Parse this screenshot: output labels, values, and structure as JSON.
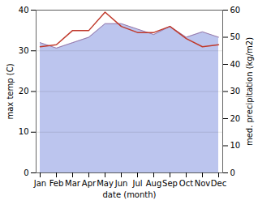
{
  "chart_data": {
    "type": "line",
    "categories": [
      "Jan",
      "Feb",
      "Mar",
      "Apr",
      "May",
      "Jun",
      "Jul",
      "Aug",
      "Sep",
      "Oct",
      "Nov",
      "Dec"
    ],
    "xlabel": "date (month)",
    "ylabel": "max temp (C)",
    "y2label": "med. precipitation (kg/m2)",
    "ylim": [
      0,
      40
    ],
    "yticks": [
      0,
      10,
      20,
      30,
      40
    ],
    "y2lim": [
      0,
      60
    ],
    "y2ticks": [
      0,
      10,
      20,
      30,
      40,
      50,
      60
    ],
    "grid": true,
    "series": [
      {
        "type": "area",
        "axis": "y2",
        "colors": [
          "#bcc5ee",
          "#9878a8"
        ],
        "values": [
          48.0,
          46.0,
          48.0,
          50.0,
          55.0,
          55.0,
          53.0,
          51.0,
          54.0,
          50.0,
          52.0,
          50.0
        ]
      },
      {
        "type": "line",
        "color": "#c0392b",
        "values": [
          31.0,
          31.5,
          35.0,
          35.0,
          39.5,
          36.0,
          34.5,
          34.5,
          36.0,
          33.0,
          31.0,
          31.5
        ]
      }
    ]
  }
}
